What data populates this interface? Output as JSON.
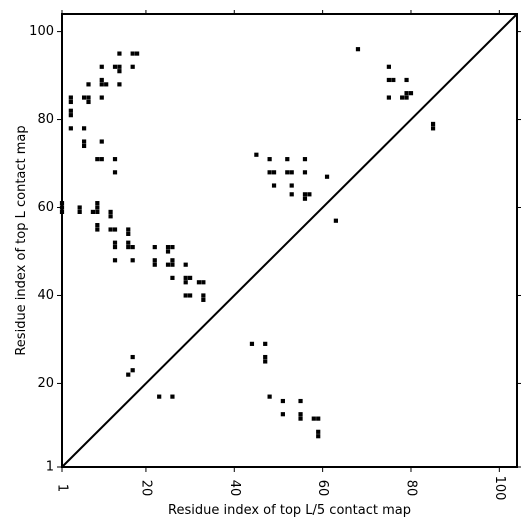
{
  "chart_data": {
    "type": "scatter",
    "subtype": "contact-map",
    "xlabel": "Residue index of top L/5 contact map",
    "ylabel": "Residue index of top L contact map",
    "xlim": [
      1,
      104
    ],
    "ylim": [
      1,
      104
    ],
    "x_ticks": [
      1,
      20,
      40,
      60,
      80,
      100
    ],
    "y_ticks": [
      1,
      20,
      40,
      60,
      80,
      100
    ],
    "x_tick_labels_rotated": true,
    "diagonal_line": true,
    "grid": false,
    "legend": "none",
    "colors": {
      "contact": "#000000",
      "diagonal": "#000000",
      "axes": "#000000"
    },
    "series": [
      {
        "name": "",
        "points": [
          [
            1,
            59
          ],
          [
            1,
            60
          ],
          [
            1,
            61
          ],
          [
            3,
            78
          ],
          [
            3,
            81
          ],
          [
            3,
            82
          ],
          [
            3,
            84
          ],
          [
            3,
            85
          ],
          [
            5,
            59
          ],
          [
            5,
            60
          ],
          [
            6,
            74
          ],
          [
            6,
            75
          ],
          [
            6,
            78
          ],
          [
            6,
            85
          ],
          [
            7,
            84
          ],
          [
            7,
            85
          ],
          [
            7,
            88
          ],
          [
            8,
            59
          ],
          [
            9,
            55
          ],
          [
            9,
            56
          ],
          [
            9,
            59
          ],
          [
            9,
            60
          ],
          [
            9,
            61
          ],
          [
            9,
            71
          ],
          [
            10,
            71
          ],
          [
            10,
            75
          ],
          [
            10,
            85
          ],
          [
            10,
            88
          ],
          [
            10,
            89
          ],
          [
            10,
            92
          ],
          [
            11,
            88
          ],
          [
            12,
            55
          ],
          [
            12,
            58
          ],
          [
            12,
            59
          ],
          [
            13,
            48
          ],
          [
            13,
            51
          ],
          [
            13,
            52
          ],
          [
            13,
            55
          ],
          [
            13,
            68
          ],
          [
            13,
            71
          ],
          [
            13,
            92
          ],
          [
            14,
            88
          ],
          [
            14,
            91
          ],
          [
            14,
            92
          ],
          [
            14,
            95
          ],
          [
            16,
            22
          ],
          [
            16,
            51
          ],
          [
            16,
            52
          ],
          [
            16,
            54
          ],
          [
            16,
            55
          ],
          [
            17,
            23
          ],
          [
            17,
            26
          ],
          [
            17,
            48
          ],
          [
            17,
            51
          ],
          [
            17,
            92
          ],
          [
            17,
            95
          ],
          [
            18,
            95
          ],
          [
            22,
            47
          ],
          [
            22,
            48
          ],
          [
            22,
            51
          ],
          [
            23,
            17
          ],
          [
            25,
            47
          ],
          [
            25,
            50
          ],
          [
            25,
            51
          ],
          [
            26,
            17
          ],
          [
            26,
            44
          ],
          [
            26,
            47
          ],
          [
            26,
            48
          ],
          [
            26,
            51
          ],
          [
            29,
            40
          ],
          [
            29,
            43
          ],
          [
            29,
            44
          ],
          [
            29,
            47
          ],
          [
            30,
            40
          ],
          [
            30,
            44
          ],
          [
            32,
            43
          ],
          [
            33,
            39
          ],
          [
            33,
            40
          ],
          [
            33,
            43
          ],
          [
            44,
            29
          ],
          [
            45,
            72
          ],
          [
            47,
            25
          ],
          [
            47,
            26
          ],
          [
            47,
            29
          ],
          [
            48,
            17
          ],
          [
            48,
            68
          ],
          [
            48,
            71
          ],
          [
            49,
            65
          ],
          [
            49,
            68
          ],
          [
            51,
            13
          ],
          [
            51,
            16
          ],
          [
            52,
            68
          ],
          [
            52,
            71
          ],
          [
            53,
            63
          ],
          [
            53,
            65
          ],
          [
            53,
            68
          ],
          [
            55,
            12
          ],
          [
            55,
            13
          ],
          [
            55,
            16
          ],
          [
            56,
            62
          ],
          [
            56,
            63
          ],
          [
            56,
            68
          ],
          [
            56,
            71
          ],
          [
            57,
            63
          ],
          [
            58,
            12
          ],
          [
            59,
            8
          ],
          [
            59,
            9
          ],
          [
            59,
            12
          ],
          [
            61,
            67
          ],
          [
            63,
            57
          ],
          [
            68,
            96
          ],
          [
            75,
            85
          ],
          [
            75,
            89
          ],
          [
            75,
            92
          ],
          [
            76,
            89
          ],
          [
            78,
            85
          ],
          [
            79,
            85
          ],
          [
            79,
            86
          ],
          [
            79,
            89
          ],
          [
            80,
            86
          ],
          [
            85,
            78
          ],
          [
            85,
            79
          ]
        ]
      }
    ]
  }
}
